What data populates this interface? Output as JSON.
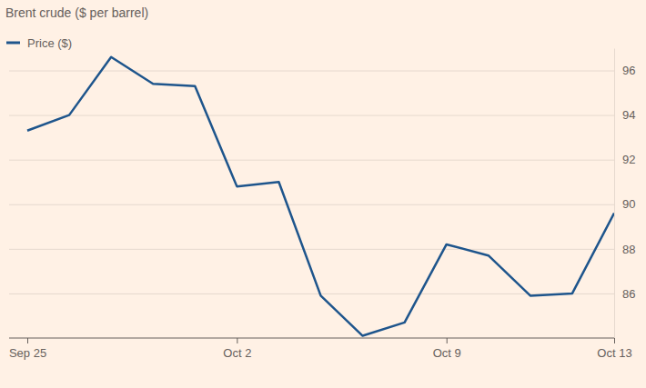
{
  "chart_data": {
    "type": "line",
    "title": "Brent crude ($ per barrel)",
    "categories": [
      "Sep 25",
      null,
      null,
      null,
      null,
      "Oct 2",
      null,
      null,
      null,
      null,
      "Oct 9",
      null,
      null,
      null,
      "Oct 13"
    ],
    "series": [
      {
        "name": "Price ($)",
        "color": "#1e558c",
        "values": [
          93.3,
          94.0,
          96.6,
          95.4,
          95.3,
          90.8,
          91.0,
          85.9,
          84.1,
          84.7,
          88.2,
          87.7,
          85.9,
          86.0,
          89.6
        ]
      }
    ],
    "ylim": [
      84,
      97
    ],
    "yticks": [
      86,
      88,
      90,
      92,
      94,
      96
    ],
    "grid": true,
    "legend": "top-left"
  }
}
